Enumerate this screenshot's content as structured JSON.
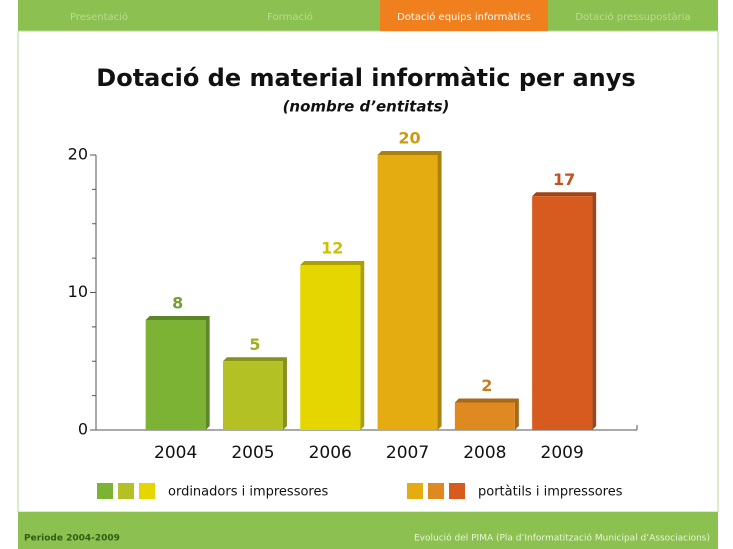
{
  "nav": {
    "tabs": [
      "Presentació",
      "Formació",
      "Dotació equips informàtics",
      "Dotació pressupostària"
    ],
    "active": 2
  },
  "chart_data": {
    "type": "bar",
    "title": "Dotació de material informàtic per anys",
    "subtitle": "(nombre d’entitats)",
    "categories": [
      "2004",
      "2005",
      "2006",
      "2007",
      "2008",
      "2009"
    ],
    "values": [
      8,
      5,
      12,
      20,
      2,
      17
    ],
    "colors": [
      "#7cb335",
      "#b4c125",
      "#e5d500",
      "#e5ac12",
      "#df8a21",
      "#d75a1f"
    ],
    "ylim": [
      0,
      20
    ],
    "yticks": [
      0,
      10,
      20
    ],
    "minor_yticks": [
      2.5,
      5,
      7.5,
      12.5,
      15,
      17.5
    ],
    "legend": [
      {
        "label": "ordinadors i impressores",
        "colors": [
          "#7cb335",
          "#b4c125",
          "#e5d500"
        ]
      },
      {
        "label": "portàtils i impressores",
        "colors": [
          "#e5ac12",
          "#df8a21",
          "#d75a1f"
        ]
      }
    ]
  },
  "footer": {
    "left": "Periode 2004-2009",
    "right": "Evolució del PIMA (Pla d’Informatització Municipal d’Associacions)"
  }
}
